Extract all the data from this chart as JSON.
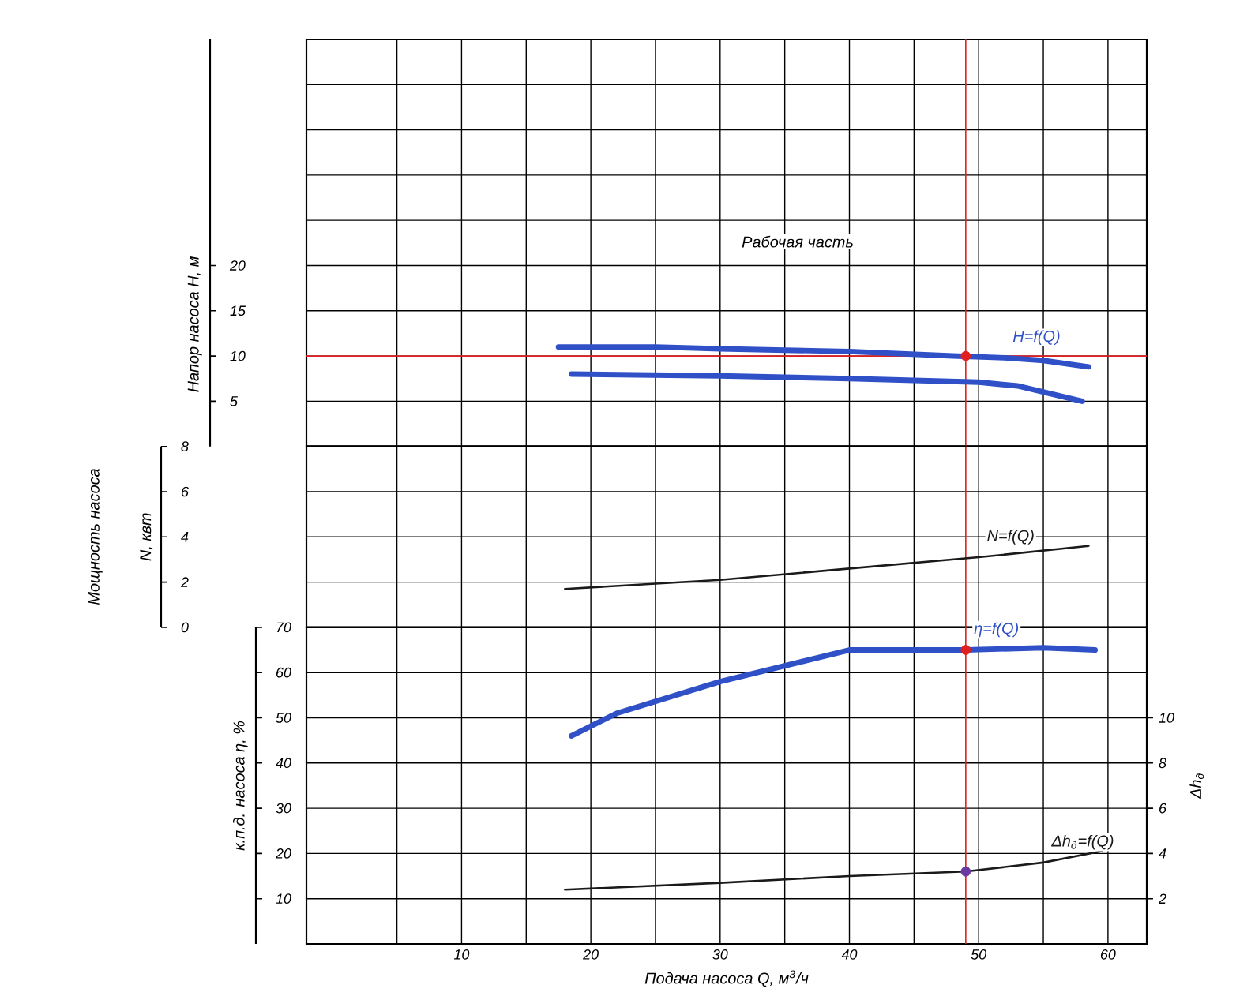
{
  "chart_data": [
    {
      "type": "line",
      "xlim": [
        -2,
        63
      ],
      "xticks": [
        {
          "value": 5,
          "label": null
        },
        {
          "value": 10,
          "label": null
        },
        {
          "value": 15,
          "label": null
        },
        {
          "value": 20,
          "label": null
        },
        {
          "value": 25,
          "label": null
        },
        {
          "value": 30,
          "label": null
        },
        {
          "value": 35,
          "label": null
        },
        {
          "value": 40,
          "label": null
        },
        {
          "value": 45,
          "label": null
        },
        {
          "value": 50,
          "label": null
        },
        {
          "value": 55,
          "label": null
        },
        {
          "value": 60,
          "label": null
        }
      ],
      "tick_labels": "y",
      "ylim": [
        0,
        45
      ],
      "yticks": [
        5,
        10,
        15,
        20
      ],
      "ylabel": "Напор насоса H, м",
      "grid": true,
      "marker": "none",
      "series": [
        {
          "name": "H=f(Q)",
          "color": "#3050c8",
          "x": [
            17.5,
            25,
            30,
            40,
            48,
            52,
            55,
            58.5
          ],
          "values": [
            11,
            11,
            10.8,
            10.5,
            10,
            9.8,
            9.5,
            8.8
          ]
        },
        {
          "color": "#3050c8",
          "x": [
            18.5,
            30,
            40,
            50,
            53,
            58
          ],
          "values": [
            8,
            7.8,
            7.5,
            7.1,
            6.7,
            5
          ]
        },
        {
          "type": "scatter",
          "color": "#e02020",
          "marker": "circle",
          "x": [
            49
          ],
          "values": [
            10
          ]
        }
      ],
      "ref_lines": [
        {
          "axis": "x",
          "value": 49,
          "color": "#e02020"
        },
        {
          "axis": "y",
          "value": 10,
          "color": "#e02020"
        }
      ],
      "annotations": [
        "Рабочая часть"
      ]
    },
    {
      "type": "line",
      "xlim": [
        -2,
        63
      ],
      "xticks": [
        {
          "value": 5,
          "label": null
        },
        {
          "value": 10,
          "label": null
        },
        {
          "value": 15,
          "label": null
        },
        {
          "value": 20,
          "label": null
        },
        {
          "value": 25,
          "label": null
        },
        {
          "value": 30,
          "label": null
        },
        {
          "value": 35,
          "label": null
        },
        {
          "value": 40,
          "label": null
        },
        {
          "value": 45,
          "label": null
        },
        {
          "value": 50,
          "label": null
        },
        {
          "value": 55,
          "label": null
        },
        {
          "value": 60,
          "label": null
        }
      ],
      "tick_labels": "y",
      "ylim": [
        0,
        8
      ],
      "yticks": [
        0,
        2,
        4,
        6,
        8
      ],
      "ylabel": "N, квт",
      "grid": true,
      "marker": "none",
      "series": [
        {
          "name": "N=f(Q)",
          "color": "#1a1a1a",
          "x": [
            18,
            30,
            40,
            50,
            58.5
          ],
          "values": [
            1.7,
            2.1,
            2.6,
            3.1,
            3.6
          ]
        }
      ],
      "ref_lines": [
        {
          "axis": "x",
          "value": 49,
          "color": "#e02020"
        }
      ],
      "annotations": [
        "Мощность насоса"
      ]
    },
    {
      "type": "line",
      "xlabel": "Подача насоса Q, м$^{3}$/ч",
      "xlim": [
        -2,
        63
      ],
      "xticks": [
        {
          "value": 5,
          "label": null
        },
        10,
        {
          "value": 15,
          "label": null
        },
        20,
        {
          "value": 25,
          "label": null
        },
        30,
        {
          "value": 35,
          "label": null
        },
        40,
        {
          "value": 45,
          "label": null
        },
        50,
        {
          "value": 55,
          "label": null
        },
        60
      ],
      "ylim": [
        0,
        70
      ],
      "yticks": [
        10,
        20,
        30,
        40,
        50,
        60,
        70
      ],
      "ylabel": "к.п.д. насоса η, %",
      "y2lim": [
        0,
        14
      ],
      "y2ticks": [
        2,
        4,
        6,
        8,
        10
      ],
      "y2label": "Δh$_{д}$",
      "grid": true,
      "marker": "none",
      "series": [
        {
          "name": "η=f(Q)",
          "color": "#3050c8",
          "x": [
            18.5,
            22,
            30,
            40,
            49,
            55,
            59
          ],
          "values": [
            46,
            51,
            58,
            65,
            65,
            65.5,
            65
          ]
        },
        {
          "name": "Δh$_{д}$=f(Q)",
          "axis": "y2",
          "color": "#1a1a1a",
          "x": [
            18,
            30,
            40,
            49,
            55,
            59.5
          ],
          "values": [
            2.4,
            2.7,
            3.0,
            3.2,
            3.6,
            4.1
          ]
        },
        {
          "type": "scatter",
          "color": "#e02020",
          "marker": "circle",
          "x": [
            49
          ],
          "values": [
            65
          ]
        },
        {
          "type": "scatter",
          "axis": "y2",
          "color": "#6a3aa0",
          "marker": "circle",
          "x": [
            49
          ],
          "values": [
            3.2
          ]
        }
      ],
      "ref_lines": [
        {
          "axis": "x",
          "value": 49,
          "color": "#e02020"
        }
      ]
    }
  ]
}
